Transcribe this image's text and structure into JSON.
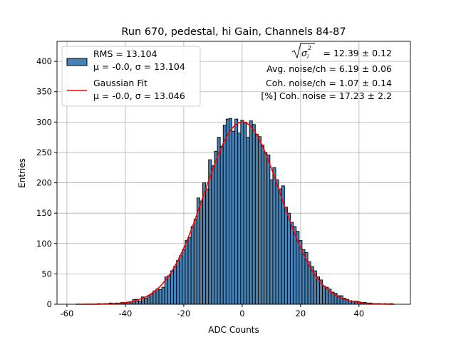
{
  "chart_data": {
    "type": "bar",
    "title": "Run 670, pedestal, hi Gain, Channels 84-87",
    "xlabel": "ADC Counts",
    "ylabel": "Entries",
    "xlim": [
      -63.4,
      57.6
    ],
    "ylim": [
      0,
      433
    ],
    "xticks": [
      -60,
      -40,
      -20,
      0,
      20,
      40
    ],
    "yticks": [
      0,
      50,
      100,
      150,
      200,
      250,
      300,
      350,
      400
    ],
    "grid": true,
    "legend_position": "top-left",
    "bin_start": -57,
    "bin_width": 1,
    "values": [
      0,
      0,
      0,
      0,
      0,
      0,
      0,
      0,
      1,
      0,
      1,
      1,
      2,
      1,
      2,
      1,
      3,
      2,
      3,
      4,
      8,
      8,
      5,
      12,
      10,
      14,
      17,
      22,
      25,
      24,
      28,
      45,
      47,
      55,
      62,
      72,
      80,
      90,
      105,
      110,
      128,
      140,
      175,
      170,
      200,
      190,
      238,
      228,
      252,
      275,
      260,
      295,
      305,
      306,
      285,
      305,
      282,
      303,
      300,
      275,
      302,
      296,
      280,
      276,
      262,
      250,
      246,
      205,
      225,
      205,
      190,
      195,
      160,
      150,
      135,
      128,
      120,
      105,
      90,
      85,
      70,
      62,
      55,
      45,
      40,
      30,
      28,
      25,
      20,
      18,
      14,
      14,
      10,
      8,
      6,
      5,
      5,
      4,
      3,
      3,
      2,
      2,
      1,
      1,
      1,
      0,
      1,
      0,
      1,
      0
    ],
    "fit": {
      "mu": -0.0,
      "sigma": 13.046,
      "amplitude": 300,
      "range": [
        -57,
        52
      ]
    },
    "colors": {
      "bars": "#4682b4",
      "fit": "#ff0000"
    },
    "legend": [
      {
        "line1": "RMS = 13.104",
        "line2": "μ = -0.0, σ = 13.104"
      },
      {
        "line1": "Gaussian Fit",
        "line2": "μ = -0.0, σ = 13.046"
      }
    ],
    "annotations": [
      "= 12.39 ± 0.12",
      "Avg. noise/ch = 6.19 ± 0.06",
      "Coh. noise/ch = 1.07 ± 0.14",
      "[%] Coh. noise = 17.23 ± 2.2"
    ],
    "annotation_sqrt_symbol": "σ",
    "annotation_sub": "i",
    "annotation_sup": "2"
  }
}
